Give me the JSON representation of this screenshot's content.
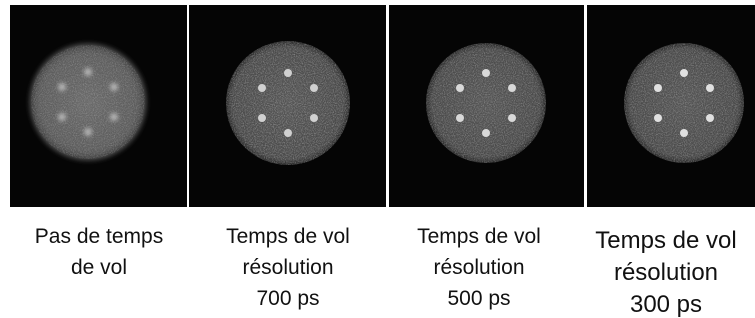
{
  "panels": [
    {
      "caption": [
        "Pas de temps",
        "de vol"
      ]
    },
    {
      "caption": [
        "Temps de vol",
        "résolution",
        "700 ps"
      ]
    },
    {
      "caption": [
        "Temps de vol",
        "résolution",
        "500 ps"
      ]
    },
    {
      "caption": [
        "Temps de vol",
        "résolution",
        "300 ps"
      ]
    }
  ]
}
